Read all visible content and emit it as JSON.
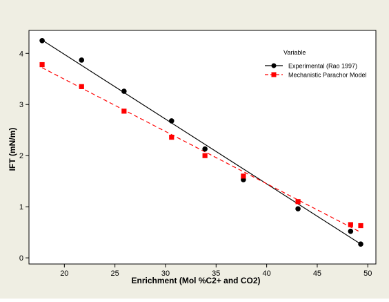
{
  "chart_data": {
    "type": "scatter",
    "xlabel": "Enrichment (Mol %C2+ and CO2)",
    "ylabel": "IFT (mN/m)",
    "xlim": [
      16.5,
      50.8
    ],
    "ylim": [
      -0.12,
      4.45
    ],
    "x_ticks": [
      20,
      25,
      30,
      35,
      40,
      45,
      50
    ],
    "y_ticks": [
      0,
      1,
      2,
      3,
      4
    ],
    "grid": false,
    "legend_title": "Variable",
    "legend_position": "top-right",
    "series": [
      {
        "name": "Experimental (Rao 1997)",
        "color": "#000000",
        "marker": "circle",
        "line_style": "solid",
        "x": [
          17.8,
          21.7,
          25.9,
          30.6,
          33.9,
          37.7,
          43.1,
          48.3,
          49.3
        ],
        "y": [
          4.25,
          3.87,
          3.26,
          2.68,
          2.13,
          1.53,
          0.96,
          0.52,
          0.27
        ],
        "fit": {
          "x": [
            17.8,
            49.3
          ],
          "y": [
            4.26,
            0.27
          ]
        }
      },
      {
        "name": "Mechanistic Parachor Model",
        "color": "#ff0000",
        "marker": "square",
        "line_style": "dashed",
        "x": [
          17.8,
          21.7,
          25.9,
          30.6,
          33.9,
          37.7,
          43.1,
          48.3,
          49.3
        ],
        "y": [
          3.78,
          3.35,
          2.87,
          2.36,
          2.0,
          1.6,
          1.1,
          0.65,
          0.63
        ],
        "fit": {
          "x": [
            17.8,
            49.3
          ],
          "y": [
            3.72,
            0.5
          ]
        }
      }
    ]
  },
  "colors": {
    "frame_background": "#efeee3",
    "plot_background": "#ffffff",
    "axis": "#000000"
  }
}
